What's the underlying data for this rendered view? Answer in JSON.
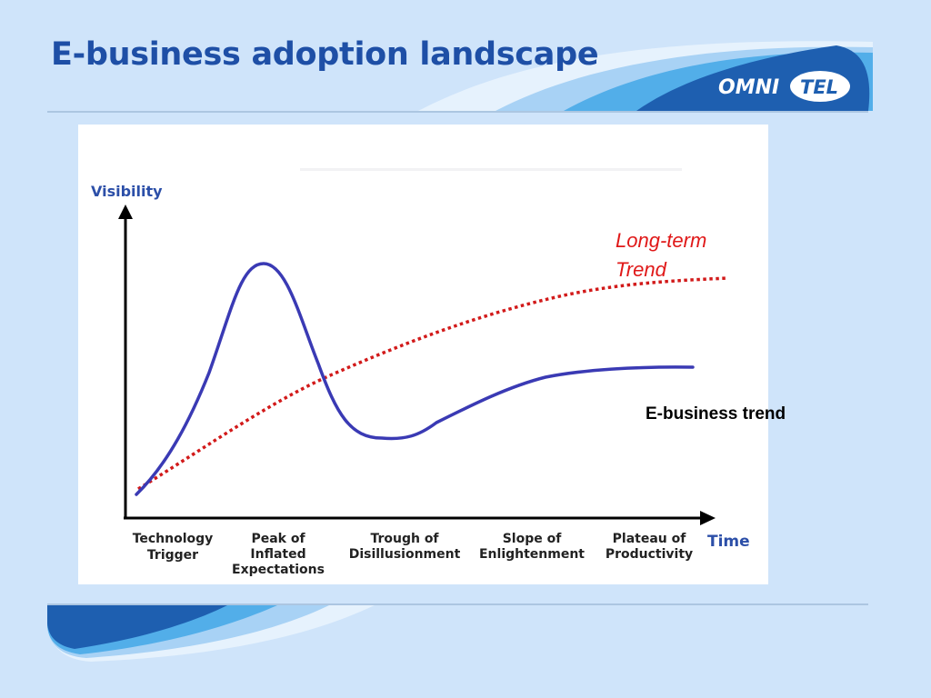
{
  "slide": {
    "title": "E-business adoption landscape",
    "logo_text_left": "OMNI",
    "logo_text_right": "TEL"
  },
  "chart_data": {
    "type": "line",
    "y_axis_label": "Visibility",
    "x_axis_label": "Time",
    "phases": [
      [
        "Technology",
        "Trigger"
      ],
      [
        "Peak of",
        "Inflated",
        "Expectations"
      ],
      [
        "Trough of",
        "Disillusionment"
      ],
      [
        "Slope of",
        "Enlightenment"
      ],
      [
        "Plateau of",
        "Productivity"
      ]
    ],
    "series": [
      {
        "name": "E-business trend",
        "style": "solid",
        "color": "#3a3ab4"
      },
      {
        "name": "Long-term Trend",
        "name_lines": [
          "Long-term",
          "Trend"
        ],
        "style": "dotted",
        "color": "#d21a1a"
      }
    ]
  },
  "colors": {
    "background": "#cfe4fa",
    "title": "#1e4fa6",
    "hype_curve": "#3a3ab4",
    "trend_curve": "#d21a1a",
    "logo_blue": "#1e5fb0"
  }
}
